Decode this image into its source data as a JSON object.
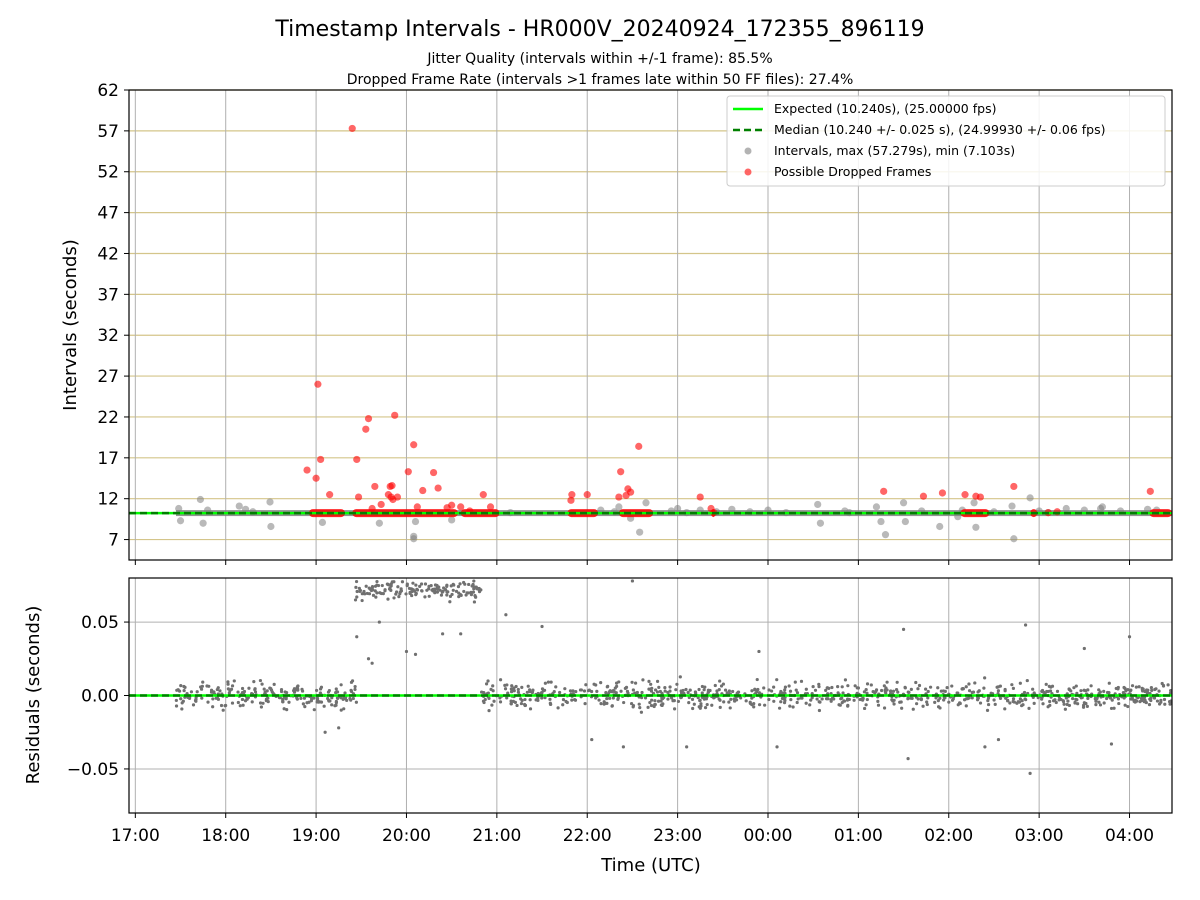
{
  "figure": {
    "title": "Timestamp Intervals - HR000V_20240924_172355_896119",
    "subtitle1": "Jitter Quality (intervals within +/-1 frame): 85.5%",
    "subtitle2": "Dropped Frame Rate (intervals >1 frames late within 50 FF files): 27.4%"
  },
  "legend": {
    "expected": "Expected (10.240s), (25.00000 fps)",
    "median": "Median (10.240 +/- 0.025 s), (24.99930 +/- 0.06 fps)",
    "intervals": "Intervals, max (57.279s), min (7.103s)",
    "dropped": "Possible Dropped Frames"
  },
  "colors": {
    "expected": "#00ff00",
    "median": "#008000",
    "interval_points": "#808080",
    "dropped_points": "#ff0000",
    "gold_grid": "#d4c58a",
    "grid": "#b0b0b0"
  },
  "chart_data": [
    {
      "type": "scatter",
      "ylabel": "Intervals (seconds)",
      "ylim": [
        4.5,
        62
      ],
      "yticks": [
        "7",
        "12",
        "17",
        "22",
        "27",
        "32",
        "37",
        "42",
        "47",
        "52",
        "57",
        "62"
      ],
      "xlim_hours": [
        16.93,
        28.47
      ],
      "expected_line": 10.24,
      "median_line": 10.24,
      "legend_position": "top-right",
      "series": [
        {
          "name": "Intervals, max (57.279s), min (7.103s)",
          "x": [
            17.48,
            17.5,
            17.72,
            17.75,
            17.8,
            18.15,
            18.22,
            18.3,
            18.49,
            18.5,
            19.07,
            19.7,
            20.08,
            20.08,
            20.1,
            20.5,
            21.15,
            22.15,
            22.3,
            22.35,
            22.48,
            22.58,
            22.65,
            22.93,
            23.0,
            23.1,
            23.25,
            23.43,
            23.6,
            23.8,
            24.0,
            24.2,
            24.55,
            24.58,
            24.85,
            24.9,
            25.2,
            25.25,
            25.3,
            25.5,
            25.52,
            25.7,
            25.9,
            26.1,
            26.15,
            26.28,
            26.3,
            26.5,
            26.7,
            26.72,
            26.9,
            27.0,
            27.1,
            27.3,
            27.5,
            27.68,
            27.7,
            27.9,
            28.2,
            28.3
          ],
          "y": [
            10.8,
            9.3,
            11.9,
            9.0,
            10.6,
            11.1,
            10.7,
            10.4,
            11.6,
            8.6,
            9.1,
            9.0,
            7.4,
            7.1,
            9.2,
            9.4,
            10.3,
            10.6,
            10.4,
            11.0,
            9.6,
            7.9,
            11.5,
            10.5,
            10.8,
            10.3,
            10.6,
            10.4,
            10.7,
            10.4,
            10.6,
            10.3,
            11.3,
            9.0,
            10.5,
            10.3,
            11.0,
            9.2,
            7.6,
            11.5,
            9.2,
            10.5,
            8.6,
            9.8,
            10.6,
            11.5,
            8.5,
            10.4,
            11.1,
            7.1,
            12.1,
            10.5,
            10.3,
            10.8,
            10.6,
            10.8,
            11.0,
            10.5,
            10.7,
            10.6
          ]
        },
        {
          "name": "Possible Dropped Frames",
          "x": [
            18.9,
            19.0,
            19.02,
            19.05,
            19.15,
            19.4,
            19.45,
            19.47,
            19.55,
            19.58,
            19.62,
            19.65,
            19.72,
            19.8,
            19.82,
            19.83,
            19.84,
            19.85,
            19.87,
            19.9,
            20.02,
            20.08,
            20.12,
            20.18,
            20.3,
            20.35,
            20.45,
            20.5,
            20.6,
            20.7,
            20.85,
            20.93,
            21.82,
            21.83,
            22.0,
            22.35,
            22.37,
            22.43,
            22.45,
            22.48,
            22.57,
            23.25,
            23.37,
            23.4,
            25.28,
            25.72,
            25.93,
            26.18,
            26.3,
            26.35,
            26.72,
            27.2,
            27.1,
            28.23
          ],
          "y": [
            15.5,
            14.5,
            26.0,
            16.8,
            12.5,
            57.3,
            16.8,
            12.2,
            20.5,
            21.8,
            10.8,
            13.5,
            11.3,
            12.5,
            13.5,
            12.2,
            13.6,
            11.9,
            22.2,
            12.2,
            15.3,
            18.6,
            11.0,
            13.0,
            15.2,
            13.3,
            10.9,
            11.2,
            11.0,
            10.5,
            12.5,
            11.0,
            11.8,
            12.5,
            12.5,
            12.2,
            15.3,
            12.4,
            13.2,
            12.8,
            18.4,
            12.2,
            10.8,
            10.3,
            12.9,
            12.3,
            12.7,
            12.5,
            12.3,
            12.2,
            13.5,
            10.4,
            10.3,
            12.9
          ]
        }
      ],
      "dropped_bands_hours": [
        [
          18.92,
          19.32
        ],
        [
          19.4,
          20.57
        ],
        [
          20.6,
          21.03
        ],
        [
          21.78,
          22.12
        ],
        [
          22.35,
          22.73
        ],
        [
          23.37,
          23.42
        ],
        [
          26.13,
          26.45
        ],
        [
          26.9,
          26.98
        ],
        [
          28.22,
          28.47
        ]
      ]
    },
    {
      "type": "scatter",
      "ylabel": "Residuals (seconds)",
      "ylim": [
        -0.08,
        0.08
      ],
      "yticks": [
        "−0.05",
        "0.00",
        "0.05"
      ],
      "xlabel": "Time (UTC)",
      "xlim_hours": [
        16.93,
        28.47
      ],
      "xticks": [
        "17:00",
        "18:00",
        "19:00",
        "20:00",
        "21:00",
        "22:00",
        "23:00",
        "00:00",
        "01:00",
        "02:00",
        "03:00",
        "04:00"
      ],
      "series": [
        {
          "name": "Residuals",
          "segments": [
            {
              "x_range": [
                17.45,
                19.45
              ],
              "center": 0.0,
              "spread": 0.008
            },
            {
              "x_range": [
                19.43,
                20.83
              ],
              "center": 0.072,
              "spread": 0.006
            },
            {
              "x_range": [
                20.83,
                28.47
              ],
              "center": 0.0,
              "spread": 0.008
            }
          ],
          "outliers": {
            "x": [
              19.1,
              19.25,
              19.45,
              19.58,
              19.62,
              19.7,
              20.0,
              20.1,
              20.4,
              20.6,
              21.1,
              21.5,
              22.05,
              22.4,
              22.5,
              23.1,
              23.9,
              24.1,
              25.5,
              25.55,
              26.4,
              26.55,
              26.85,
              26.9,
              27.5,
              27.8,
              28.0
            ],
            "y": [
              -0.025,
              -0.022,
              0.04,
              0.025,
              0.022,
              0.05,
              0.03,
              0.028,
              0.042,
              0.042,
              0.055,
              0.047,
              -0.03,
              -0.035,
              0.078,
              -0.035,
              0.03,
              -0.035,
              0.045,
              -0.043,
              -0.035,
              -0.03,
              0.048,
              -0.053,
              0.032,
              -0.033,
              0.04
            ]
          }
        }
      ]
    }
  ]
}
